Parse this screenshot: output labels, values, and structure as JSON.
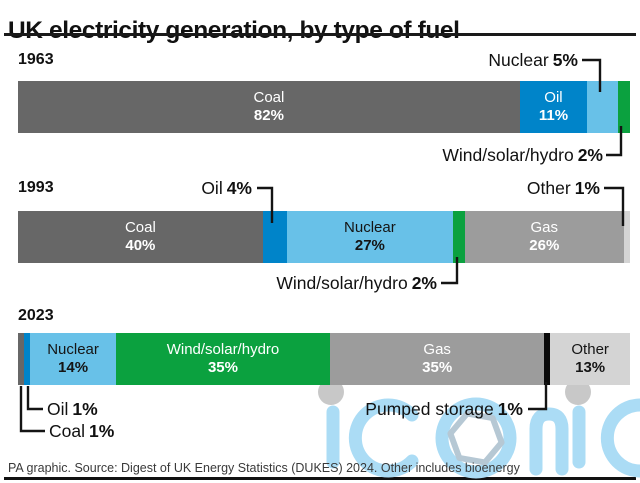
{
  "title": "UK electricity generation, by type of fuel",
  "source_line": "PA graphic. Source: Digest of UK Energy Statistics (DUKES) 2024. Other includes bioenergy",
  "watermark_text": "iconic",
  "accent_colors": {
    "coal": "#676767",
    "oil": "#0084c9",
    "nuclear": "#68c1e8",
    "wind_solar_hydro": "#0ba13f",
    "gas": "#9c9c9c",
    "pumped_storage": "#0a0a0a",
    "other": "#d4d4d4",
    "watermark_blue": "#abdcf5",
    "watermark_dot_gray": "#c8c8c8"
  },
  "chart_data": {
    "type": "bar",
    "variant": "horizontal-stacked",
    "title": "UK electricity generation, by type of fuel",
    "unit": "percent",
    "xlim": [
      0,
      100
    ],
    "grid": false,
    "legend": "labels on/near segments",
    "categories": [
      "1963",
      "1993",
      "2023"
    ],
    "series": [
      {
        "name": "Coal",
        "values": [
          82,
          40,
          1
        ],
        "color": "#676767"
      },
      {
        "name": "Oil",
        "values": [
          11,
          4,
          1
        ],
        "color": "#0084c9"
      },
      {
        "name": "Nuclear",
        "values": [
          5,
          27,
          14
        ],
        "color": "#68c1e8"
      },
      {
        "name": "Wind/solar/hydro",
        "values": [
          2,
          2,
          35
        ],
        "color": "#0ba13f"
      },
      {
        "name": "Gas",
        "values": [
          0,
          26,
          35
        ],
        "color": "#9c9c9c"
      },
      {
        "name": "Pumped storage",
        "values": [
          0,
          0,
          1
        ],
        "color": "#0a0a0a"
      },
      {
        "name": "Other",
        "values": [
          0,
          1,
          13
        ],
        "color": "#d4d4d4"
      }
    ],
    "bars": [
      {
        "year": "1963",
        "segments": [
          {
            "fuel": "Coal",
            "pct": "82%",
            "value": 82,
            "color": "#676767"
          },
          {
            "fuel": "Oil",
            "pct": "11%",
            "value": 11,
            "color": "#0084c9"
          },
          {
            "fuel": "Nuclear",
            "pct": "5%",
            "value": 5,
            "color": "#68c1e8"
          },
          {
            "fuel": "Wind/solar/hydro",
            "pct": "2%",
            "value": 2,
            "color": "#0ba13f"
          }
        ]
      },
      {
        "year": "1993",
        "segments": [
          {
            "fuel": "Coal",
            "pct": "40%",
            "value": 40,
            "color": "#676767"
          },
          {
            "fuel": "Oil",
            "pct": "4%",
            "value": 4,
            "color": "#0084c9"
          },
          {
            "fuel": "Nuclear",
            "pct": "27%",
            "value": 27,
            "color": "#68c1e8"
          },
          {
            "fuel": "Wind/solar/hydro",
            "pct": "2%",
            "value": 2,
            "color": "#0ba13f"
          },
          {
            "fuel": "Gas",
            "pct": "26%",
            "value": 26,
            "color": "#9c9c9c"
          },
          {
            "fuel": "Other",
            "pct": "1%",
            "value": 1,
            "color": "#d4d4d4"
          }
        ]
      },
      {
        "year": "2023",
        "segments": [
          {
            "fuel": "Coal",
            "pct": "1%",
            "value": 1,
            "color": "#676767"
          },
          {
            "fuel": "Oil",
            "pct": "1%",
            "value": 1,
            "color": "#0084c9"
          },
          {
            "fuel": "Nuclear",
            "pct": "14%",
            "value": 14,
            "color": "#68c1e8"
          },
          {
            "fuel": "Wind/solar/hydro",
            "pct": "35%",
            "value": 35,
            "color": "#0ba13f"
          },
          {
            "fuel": "Gas",
            "pct": "35%",
            "value": 35,
            "color": "#9c9c9c"
          },
          {
            "fuel": "Pumped storage",
            "pct": "1%",
            "value": 1,
            "color": "#0a0a0a"
          },
          {
            "fuel": "Other",
            "pct": "13%",
            "value": 13,
            "color": "#d4d4d4"
          }
        ]
      }
    ]
  }
}
